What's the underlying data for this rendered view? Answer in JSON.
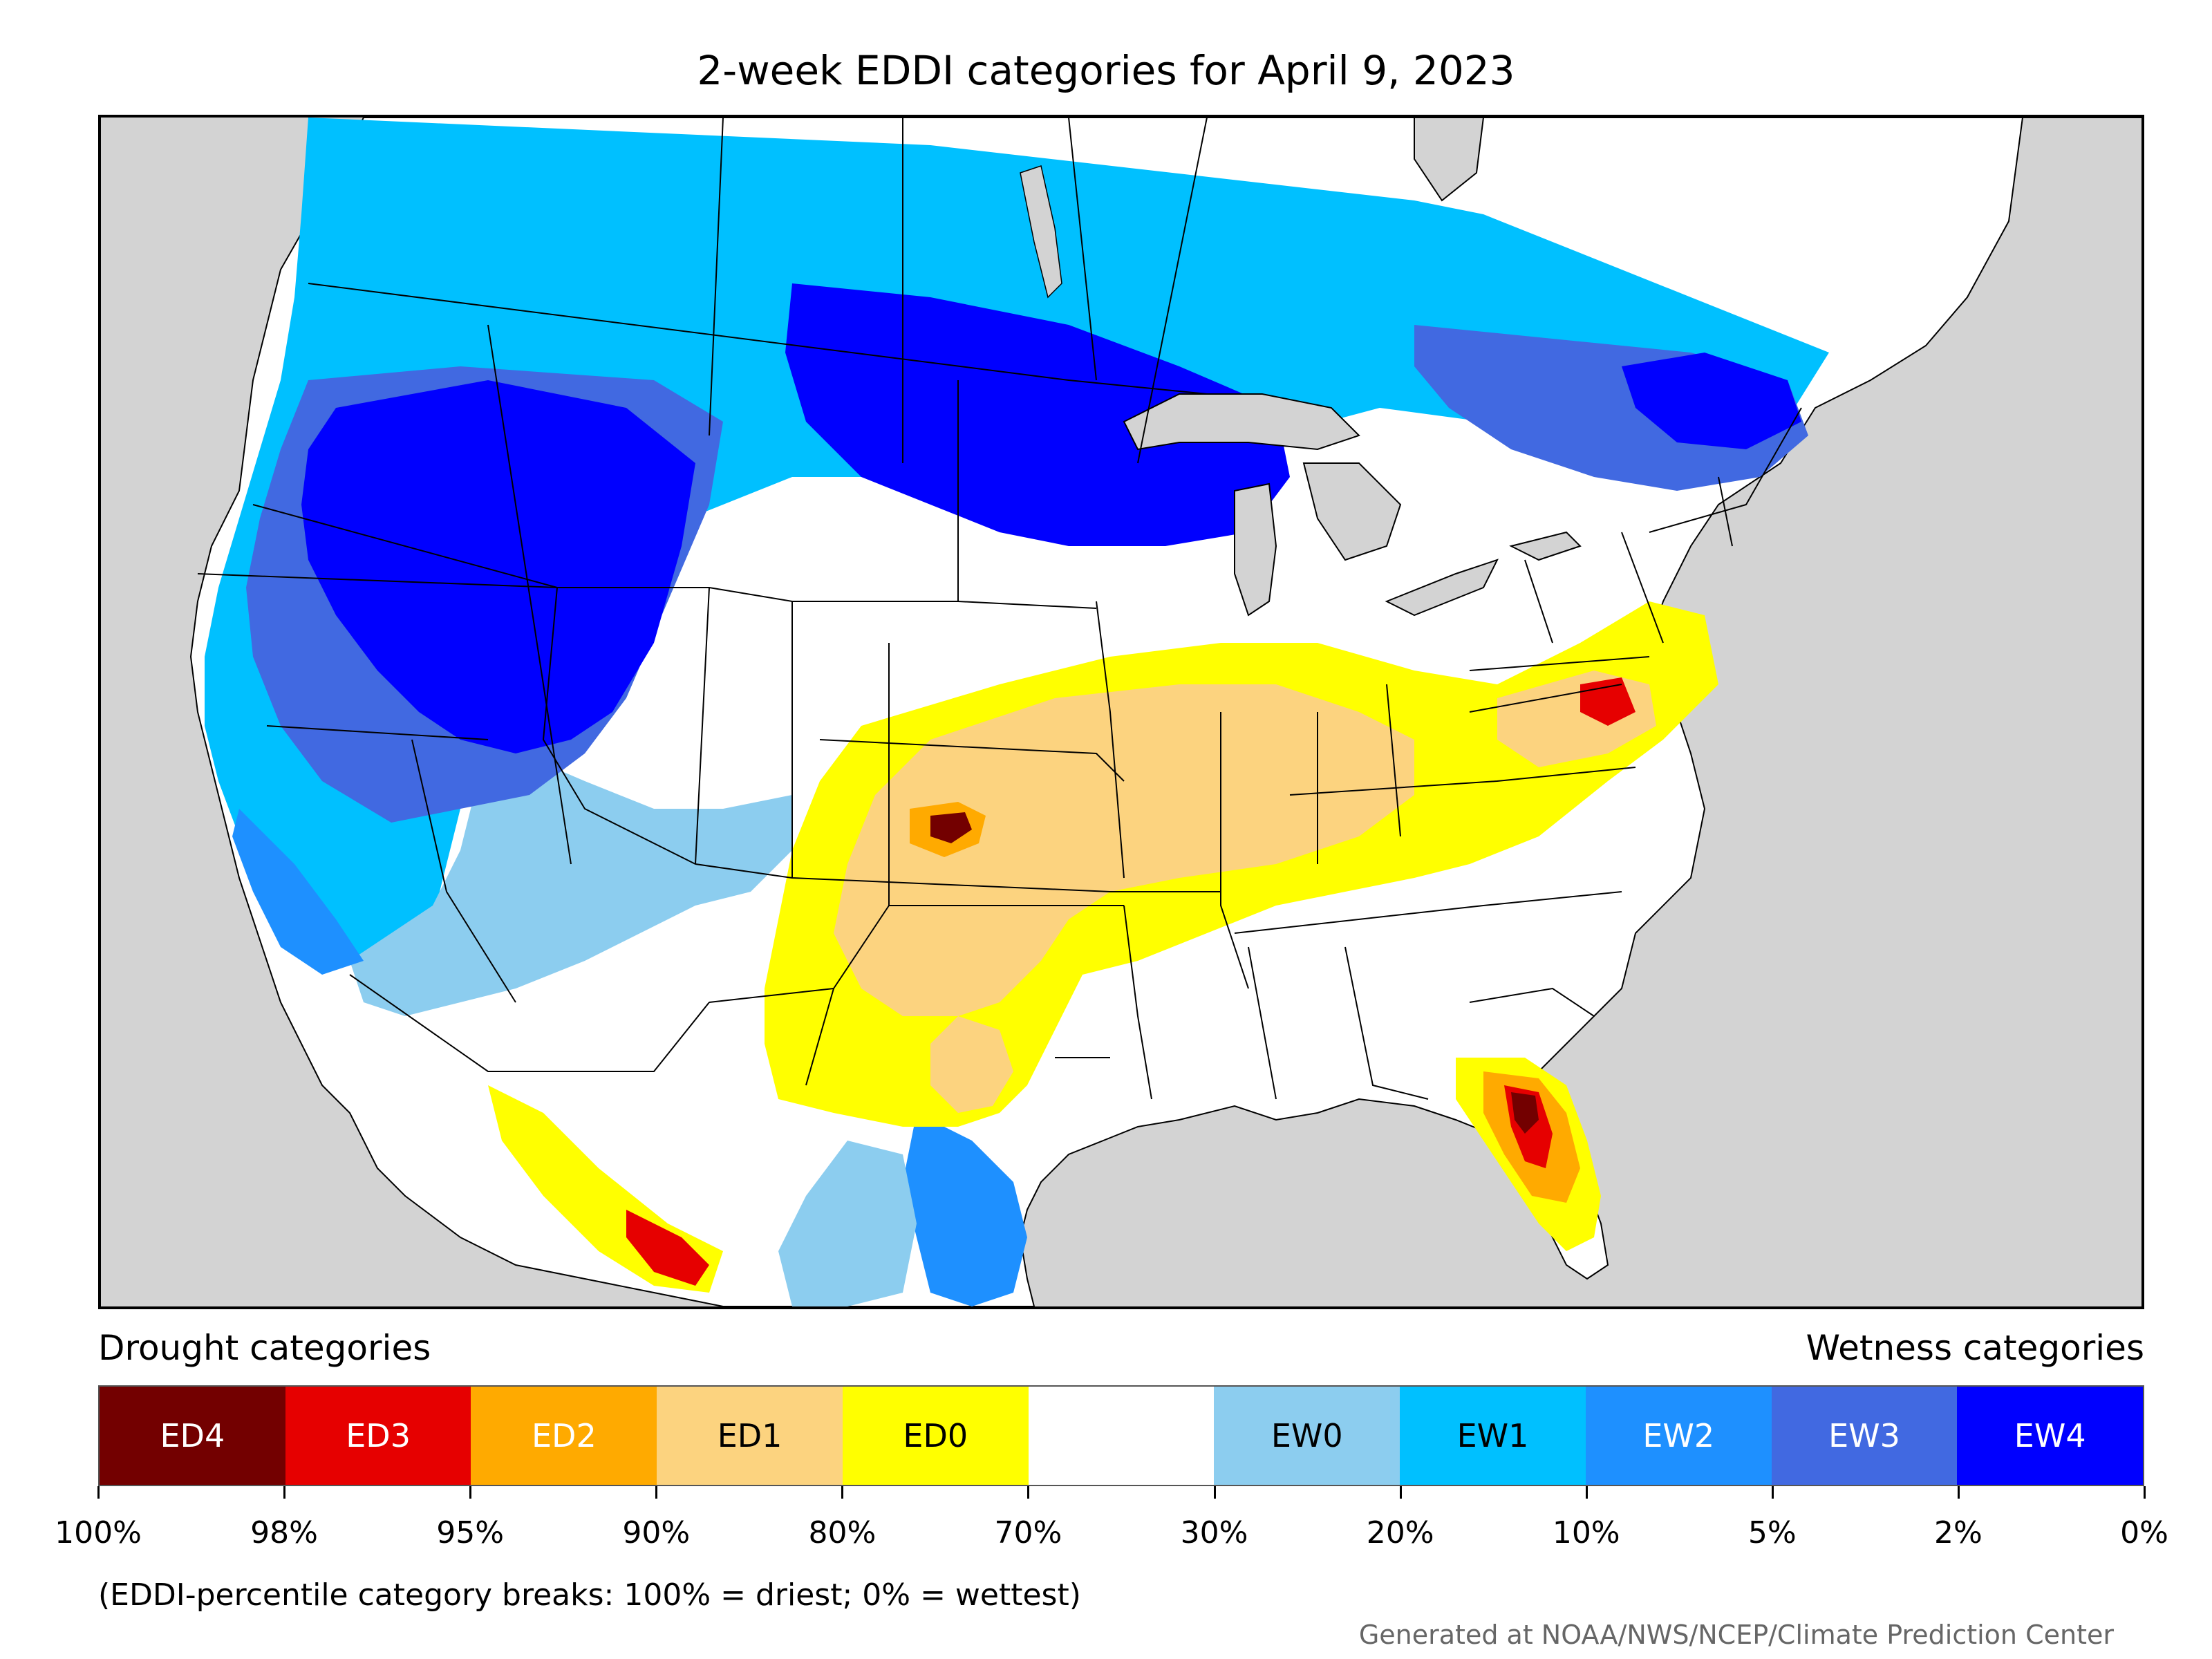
{
  "title": "2-week EDDI categories for April 9, 2023",
  "legend": {
    "drought_heading": "Drought categories",
    "wetness_heading": "Wetness categories",
    "categories": [
      {
        "label": "ED4",
        "color": "#730000",
        "text_color": "#ffffff"
      },
      {
        "label": "ED3",
        "color": "#e60000",
        "text_color": "#ffffff"
      },
      {
        "label": "ED2",
        "color": "#ffaa00",
        "text_color": "#ffffff"
      },
      {
        "label": "ED1",
        "color": "#fcd37f",
        "text_color": "#000000"
      },
      {
        "label": "ED0",
        "color": "#ffff00",
        "text_color": "#000000"
      },
      {
        "label": "",
        "color": "#ffffff",
        "text_color": "#000000"
      },
      {
        "label": "EW0",
        "color": "#8ccdef",
        "text_color": "#000000"
      },
      {
        "label": "EW1",
        "color": "#00c0ff",
        "text_color": "#000000"
      },
      {
        "label": "EW2",
        "color": "#1e90ff",
        "text_color": "#ffffff"
      },
      {
        "label": "EW3",
        "color": "#4169e1",
        "text_color": "#ffffff"
      },
      {
        "label": "EW4",
        "color": "#0000ff",
        "text_color": "#ffffff"
      }
    ],
    "breaks": [
      "100%",
      "98%",
      "95%",
      "90%",
      "80%",
      "70%",
      "30%",
      "20%",
      "10%",
      "5%",
      "2%",
      "0%"
    ]
  },
  "note": "(EDDI-percentile category breaks: 100% = driest; 0% = wettest)",
  "credit": "Generated at NOAA/NWS/NCEP/Climate Prediction Center",
  "colors": {
    "ocean": "#d3d3d3",
    "land": "#ffffff",
    "lakes": "#d3d3d3",
    "borders": "#000000"
  }
}
